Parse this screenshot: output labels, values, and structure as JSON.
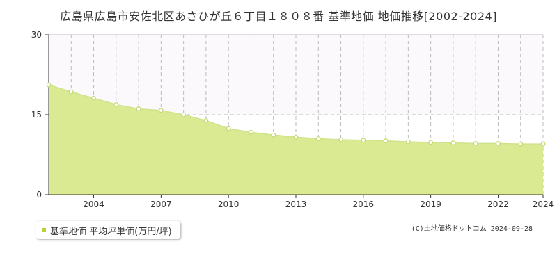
{
  "chart_data": {
    "type": "area",
    "title": "広島県広島市安佐北区あさひが丘６丁目１８０８番 基準地価 地価推移[2002-2024]",
    "x": [
      2002,
      2003,
      2004,
      2005,
      2006,
      2007,
      2008,
      2009,
      2010,
      2011,
      2012,
      2013,
      2014,
      2015,
      2016,
      2017,
      2018,
      2019,
      2020,
      2021,
      2022,
      2023,
      2024
    ],
    "series": [
      {
        "name": "基準地価 平均坪単価(万円/坪)",
        "values": [
          20.6,
          19.3,
          18.1,
          16.9,
          16.1,
          15.8,
          15.0,
          13.9,
          12.4,
          11.7,
          11.2,
          10.8,
          10.5,
          10.3,
          10.2,
          10.1,
          9.9,
          9.8,
          9.7,
          9.6,
          9.6,
          9.5,
          9.5
        ]
      }
    ],
    "x_tick_labels": [
      "2004",
      "2007",
      "2010",
      "2013",
      "2016",
      "2019",
      "2022",
      "2024"
    ],
    "y_tick_labels": [
      "0",
      "15",
      "30"
    ],
    "xlim": [
      2002,
      2024
    ],
    "ylim": [
      0,
      30
    ],
    "grid": true,
    "legend_position": "bottom-left",
    "colors": {
      "fill": "#d9ea92",
      "line": "#cfe38a",
      "marker_stroke": "#c4d870",
      "grid": "#bbbbbb",
      "band": "#fbf9fc",
      "legend_swatch": "#b5d334"
    }
  },
  "legend": {
    "label": "基準地価 平均坪単価(万円/坪)"
  },
  "copyright": "(C)土地価格ドットコム 2024-09-28"
}
